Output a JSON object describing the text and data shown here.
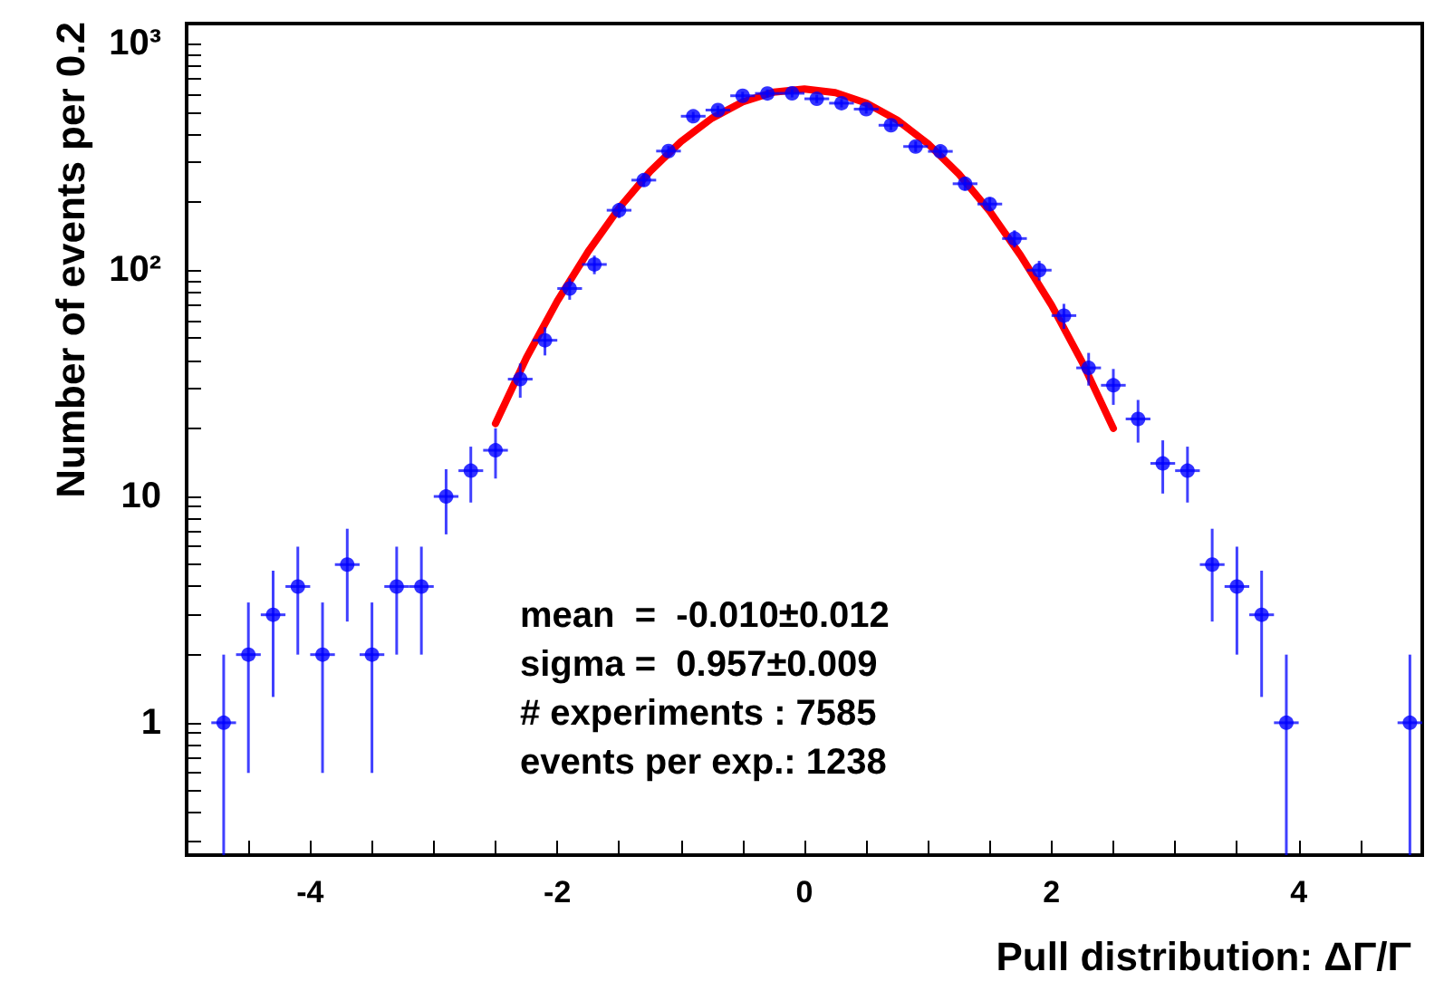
{
  "chart_data": {
    "type": "scatter",
    "xlabel": "Pull distribution: ΔΓ/Γ",
    "ylabel": "Number of events per 0.2",
    "log": "y",
    "grid": false,
    "marker": "circle",
    "xlim": [
      -5,
      5
    ],
    "ylim": [
      0.26,
      1230
    ],
    "xticks": [
      {
        "value": -4.5,
        "label": null
      },
      -4,
      {
        "value": -3.5,
        "label": null
      },
      {
        "value": -3,
        "label": null
      },
      {
        "value": -2.5,
        "label": null
      },
      -2,
      {
        "value": -1.5,
        "label": null
      },
      {
        "value": -1,
        "label": null
      },
      {
        "value": -0.5,
        "label": null
      },
      0,
      {
        "value": 0.5,
        "label": null
      },
      {
        "value": 1,
        "label": null
      },
      {
        "value": 1.5,
        "label": null
      },
      2,
      {
        "value": 2.5,
        "label": null
      },
      {
        "value": 3,
        "label": null
      },
      {
        "value": 3.5,
        "label": null
      },
      4,
      {
        "value": 4.5,
        "label": null
      }
    ],
    "yticks": [
      {
        "value": 0.3,
        "label": null
      },
      {
        "value": 0.4,
        "label": null
      },
      {
        "value": 0.5,
        "label": null
      },
      {
        "value": 0.6,
        "label": null
      },
      {
        "value": 0.7,
        "label": null
      },
      {
        "value": 0.8,
        "label": null
      },
      {
        "value": 0.9,
        "label": null
      },
      1,
      {
        "value": 2,
        "label": null
      },
      {
        "value": 3,
        "label": null
      },
      {
        "value": 4,
        "label": null
      },
      {
        "value": 5,
        "label": null
      },
      {
        "value": 6,
        "label": null
      },
      {
        "value": 7,
        "label": null
      },
      {
        "value": 8,
        "label": null
      },
      {
        "value": 9,
        "label": null
      },
      10,
      {
        "value": 20,
        "label": null
      },
      {
        "value": 30,
        "label": null
      },
      {
        "value": 40,
        "label": null
      },
      {
        "value": 50,
        "label": null
      },
      {
        "value": 60,
        "label": null
      },
      {
        "value": 70,
        "label": null
      },
      {
        "value": 80,
        "label": null
      },
      {
        "value": 90,
        "label": null
      },
      {
        "value": 100,
        "label": "10²"
      },
      {
        "value": 200,
        "label": null
      },
      {
        "value": 300,
        "label": null
      },
      {
        "value": 400,
        "label": null
      },
      {
        "value": 500,
        "label": null
      },
      {
        "value": 600,
        "label": null
      },
      {
        "value": 700,
        "label": null
      },
      {
        "value": 800,
        "label": null
      },
      {
        "value": 900,
        "label": null
      },
      {
        "value": 1000,
        "label": "10³"
      }
    ],
    "annotations": [
      "mean  =  -0.010±0.012",
      "sigma =  0.957±0.009",
      "# experiments : 7585",
      "events per exp.: 1238"
    ],
    "series": [
      {
        "color": "#0000ff",
        "x": [
          -4.7,
          -4.5,
          -4.3,
          -4.1,
          -3.9,
          -3.7,
          -3.5,
          -3.3,
          -3.1,
          -2.9,
          -2.7,
          -2.5,
          -2.3,
          -2.1,
          -1.9,
          -1.7,
          -1.5,
          -1.3,
          -1.1,
          -0.9,
          -0.7,
          -0.5,
          -0.3,
          -0.1,
          0.1,
          0.3,
          0.5,
          0.7,
          0.9,
          1.1,
          1.3,
          1.5,
          1.7,
          1.9,
          2.1,
          2.3,
          2.5,
          2.7,
          2.9,
          3.1,
          3.3,
          3.5,
          3.7,
          3.9,
          4.9
        ],
        "values": [
          1,
          2,
          3,
          4,
          2,
          5,
          2,
          4,
          4,
          10,
          13,
          16,
          33,
          49,
          83,
          106,
          184,
          250,
          336,
          479,
          510,
          590,
          604,
          605,
          572,
          547,
          515,
          437,
          352,
          335,
          241,
          196,
          138,
          100,
          63,
          37,
          31,
          22,
          14,
          13,
          5,
          4,
          3,
          1,
          1
        ],
        "errors": [
          [
            0.26,
            2
          ],
          1.4,
          1.7,
          2,
          1.4,
          2.2,
          1.4,
          2,
          2,
          3.2,
          3.6,
          4,
          5.7,
          7,
          9,
          10,
          14,
          16,
          18,
          22,
          23,
          24,
          25,
          25,
          24,
          23,
          23,
          21,
          19,
          18,
          16,
          14,
          12,
          10,
          8,
          6.1,
          5.6,
          4.7,
          3.7,
          3.6,
          2.2,
          2,
          1.7,
          [
            0.26,
            2
          ],
          [
            0.26,
            2
          ]
        ],
        "xerrors": [
          0.1,
          0.1,
          0.1,
          0.1,
          0.1,
          0.1,
          0.1,
          0.1,
          0.1,
          0.1,
          0.1,
          0.1,
          0.1,
          0.1,
          0.1,
          0.1,
          0.1,
          0.1,
          0.1,
          0.1,
          0.1,
          0.1,
          0.1,
          0.1,
          0.1,
          0.1,
          0.1,
          0.1,
          0.1,
          0.1,
          0.1,
          0.1,
          0.1,
          0.1,
          0.1,
          0.1,
          0.1,
          0.1,
          0.1,
          0.1,
          0.1,
          0.1,
          0.1,
          0.1,
          0.1
        ]
      },
      {
        "type": "line",
        "color": "#ff0000",
        "marker": "none",
        "x": [
          -2.5,
          -2.25,
          -2,
          -1.75,
          -1.5,
          -1.25,
          -1,
          -0.75,
          -0.5,
          -0.25,
          0,
          0.25,
          0.5,
          0.75,
          1,
          1.25,
          1.5,
          1.75,
          2,
          2.25,
          2.5
        ],
        "values": [
          21,
          41,
          73,
          121,
          188,
          273,
          370,
          469,
          554,
          612,
          632,
          609,
          548,
          461,
          362,
          266,
          182,
          116,
          70,
          39,
          20
        ]
      }
    ]
  }
}
